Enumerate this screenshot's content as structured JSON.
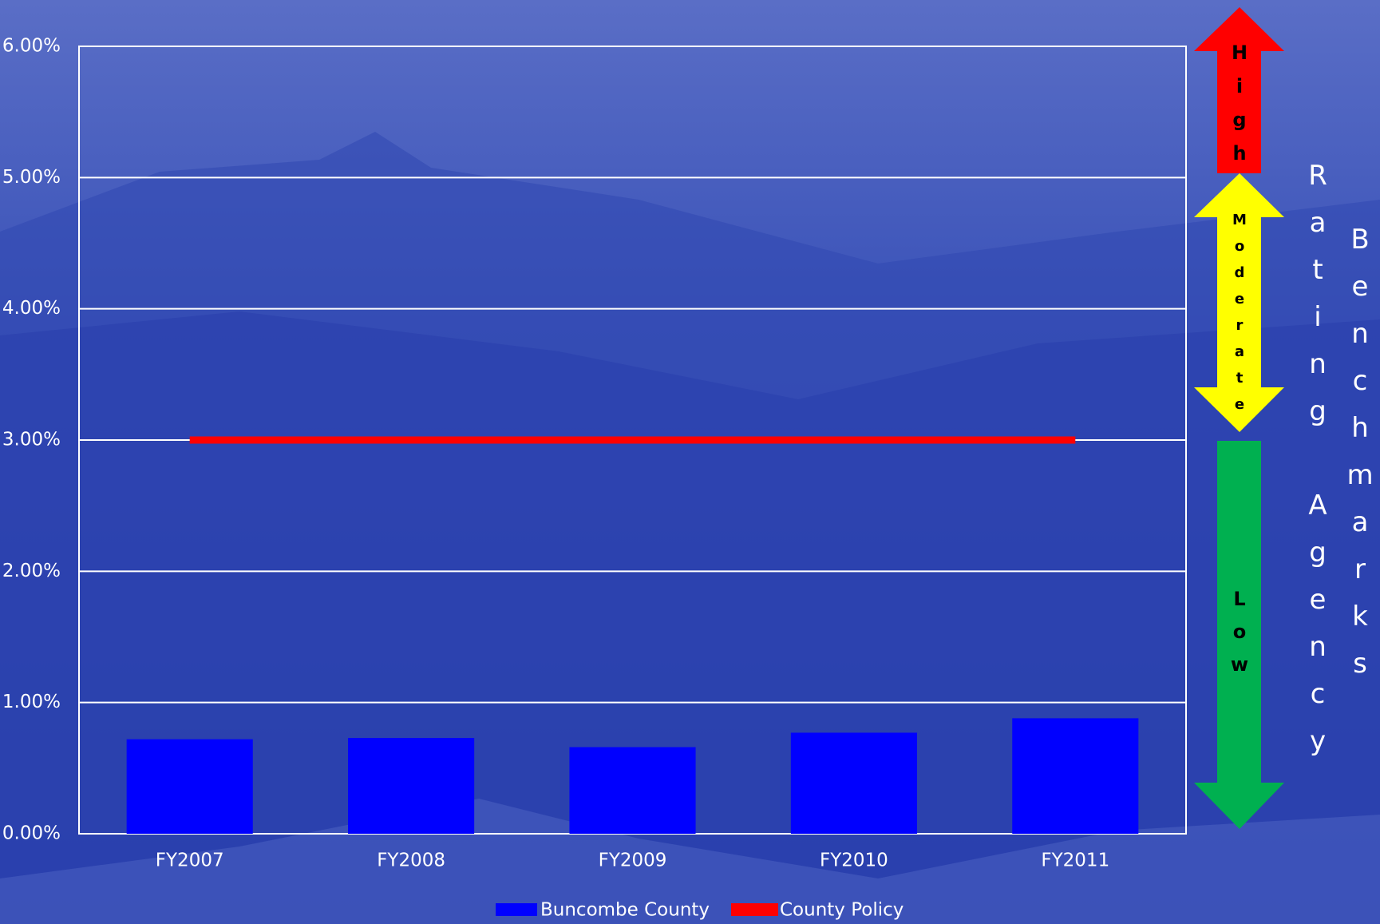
{
  "chart_data": {
    "type": "bar",
    "categories": [
      "FY2007",
      "FY2008",
      "FY2009",
      "FY2010",
      "FY2011"
    ],
    "series": [
      {
        "name": "Buncombe County",
        "type": "bar",
        "color": "#0000ff",
        "values": [
          0.72,
          0.73,
          0.66,
          0.77,
          0.88
        ]
      },
      {
        "name": "County Policy",
        "type": "line",
        "color": "#ff0000",
        "values": [
          3.0,
          3.0,
          3.0,
          3.0,
          3.0
        ]
      }
    ],
    "ylim": [
      0,
      6
    ],
    "yticks": [
      {
        "value": 0,
        "label": "0.00%"
      },
      {
        "value": 1,
        "label": "1.00%"
      },
      {
        "value": 2,
        "label": "2.00%"
      },
      {
        "value": 3,
        "label": "3.00%"
      },
      {
        "value": 4,
        "label": "4.00%"
      },
      {
        "value": 5,
        "label": "5.00%"
      },
      {
        "value": 6,
        "label": "6.00%"
      }
    ],
    "grid": true,
    "legend": "bottom",
    "annotations": {
      "high": "High",
      "moderate": "Moderate",
      "low": "Low",
      "rating_agency": "Rating Agency",
      "benchmarks": "Benchmarks"
    }
  }
}
